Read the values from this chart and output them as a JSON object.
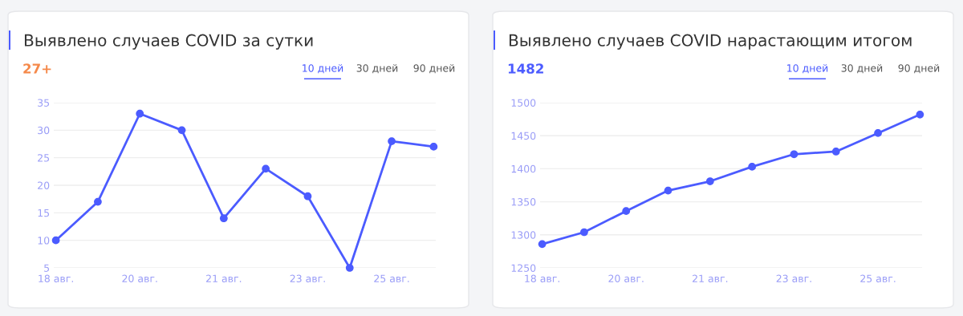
{
  "chart_data": [
    {
      "type": "line",
      "title": "Выявлено случаев COVID за сутки",
      "subtitle": "27+",
      "annotations": [
        "10 дней",
        "30 дней",
        "90 дней"
      ],
      "categories": [
        "18 авг.",
        null,
        "20 авг.",
        null,
        "21 авг.",
        null,
        "23 авг.",
        null,
        "25 авг.",
        null
      ],
      "series": [
        {
          "color": "#4b5bff",
          "values": [
            10,
            17,
            33,
            30,
            14,
            23,
            18,
            5,
            28,
            27
          ]
        }
      ],
      "ylim": [
        5,
        35
      ],
      "yticks": [
        5,
        10,
        15,
        20,
        25,
        30,
        35
      ],
      "grid": "y",
      "legend": false,
      "marker": "circle",
      "line_style": "solid"
    },
    {
      "type": "line",
      "title": "Выявлено случаев COVID нарастающим итогом",
      "subtitle": "1482",
      "annotations": [
        "10 дней",
        "30 дней",
        "90 дней"
      ],
      "categories": [
        "18 авг.",
        null,
        "20 авг.",
        null,
        "21 авг.",
        null,
        "23 авг.",
        null,
        "25 авг.",
        null
      ],
      "series": [
        {
          "color": "#4b5bff",
          "values": [
            1286,
            1304,
            1336,
            1367,
            1381,
            1403,
            1422,
            1426,
            1454,
            1482
          ]
        }
      ],
      "ylim": [
        1250,
        1500
      ],
      "yticks": [
        1250,
        1300,
        1350,
        1400,
        1450,
        1500
      ],
      "grid": "y",
      "legend": false,
      "marker": "circle",
      "line_style": "solid"
    }
  ]
}
